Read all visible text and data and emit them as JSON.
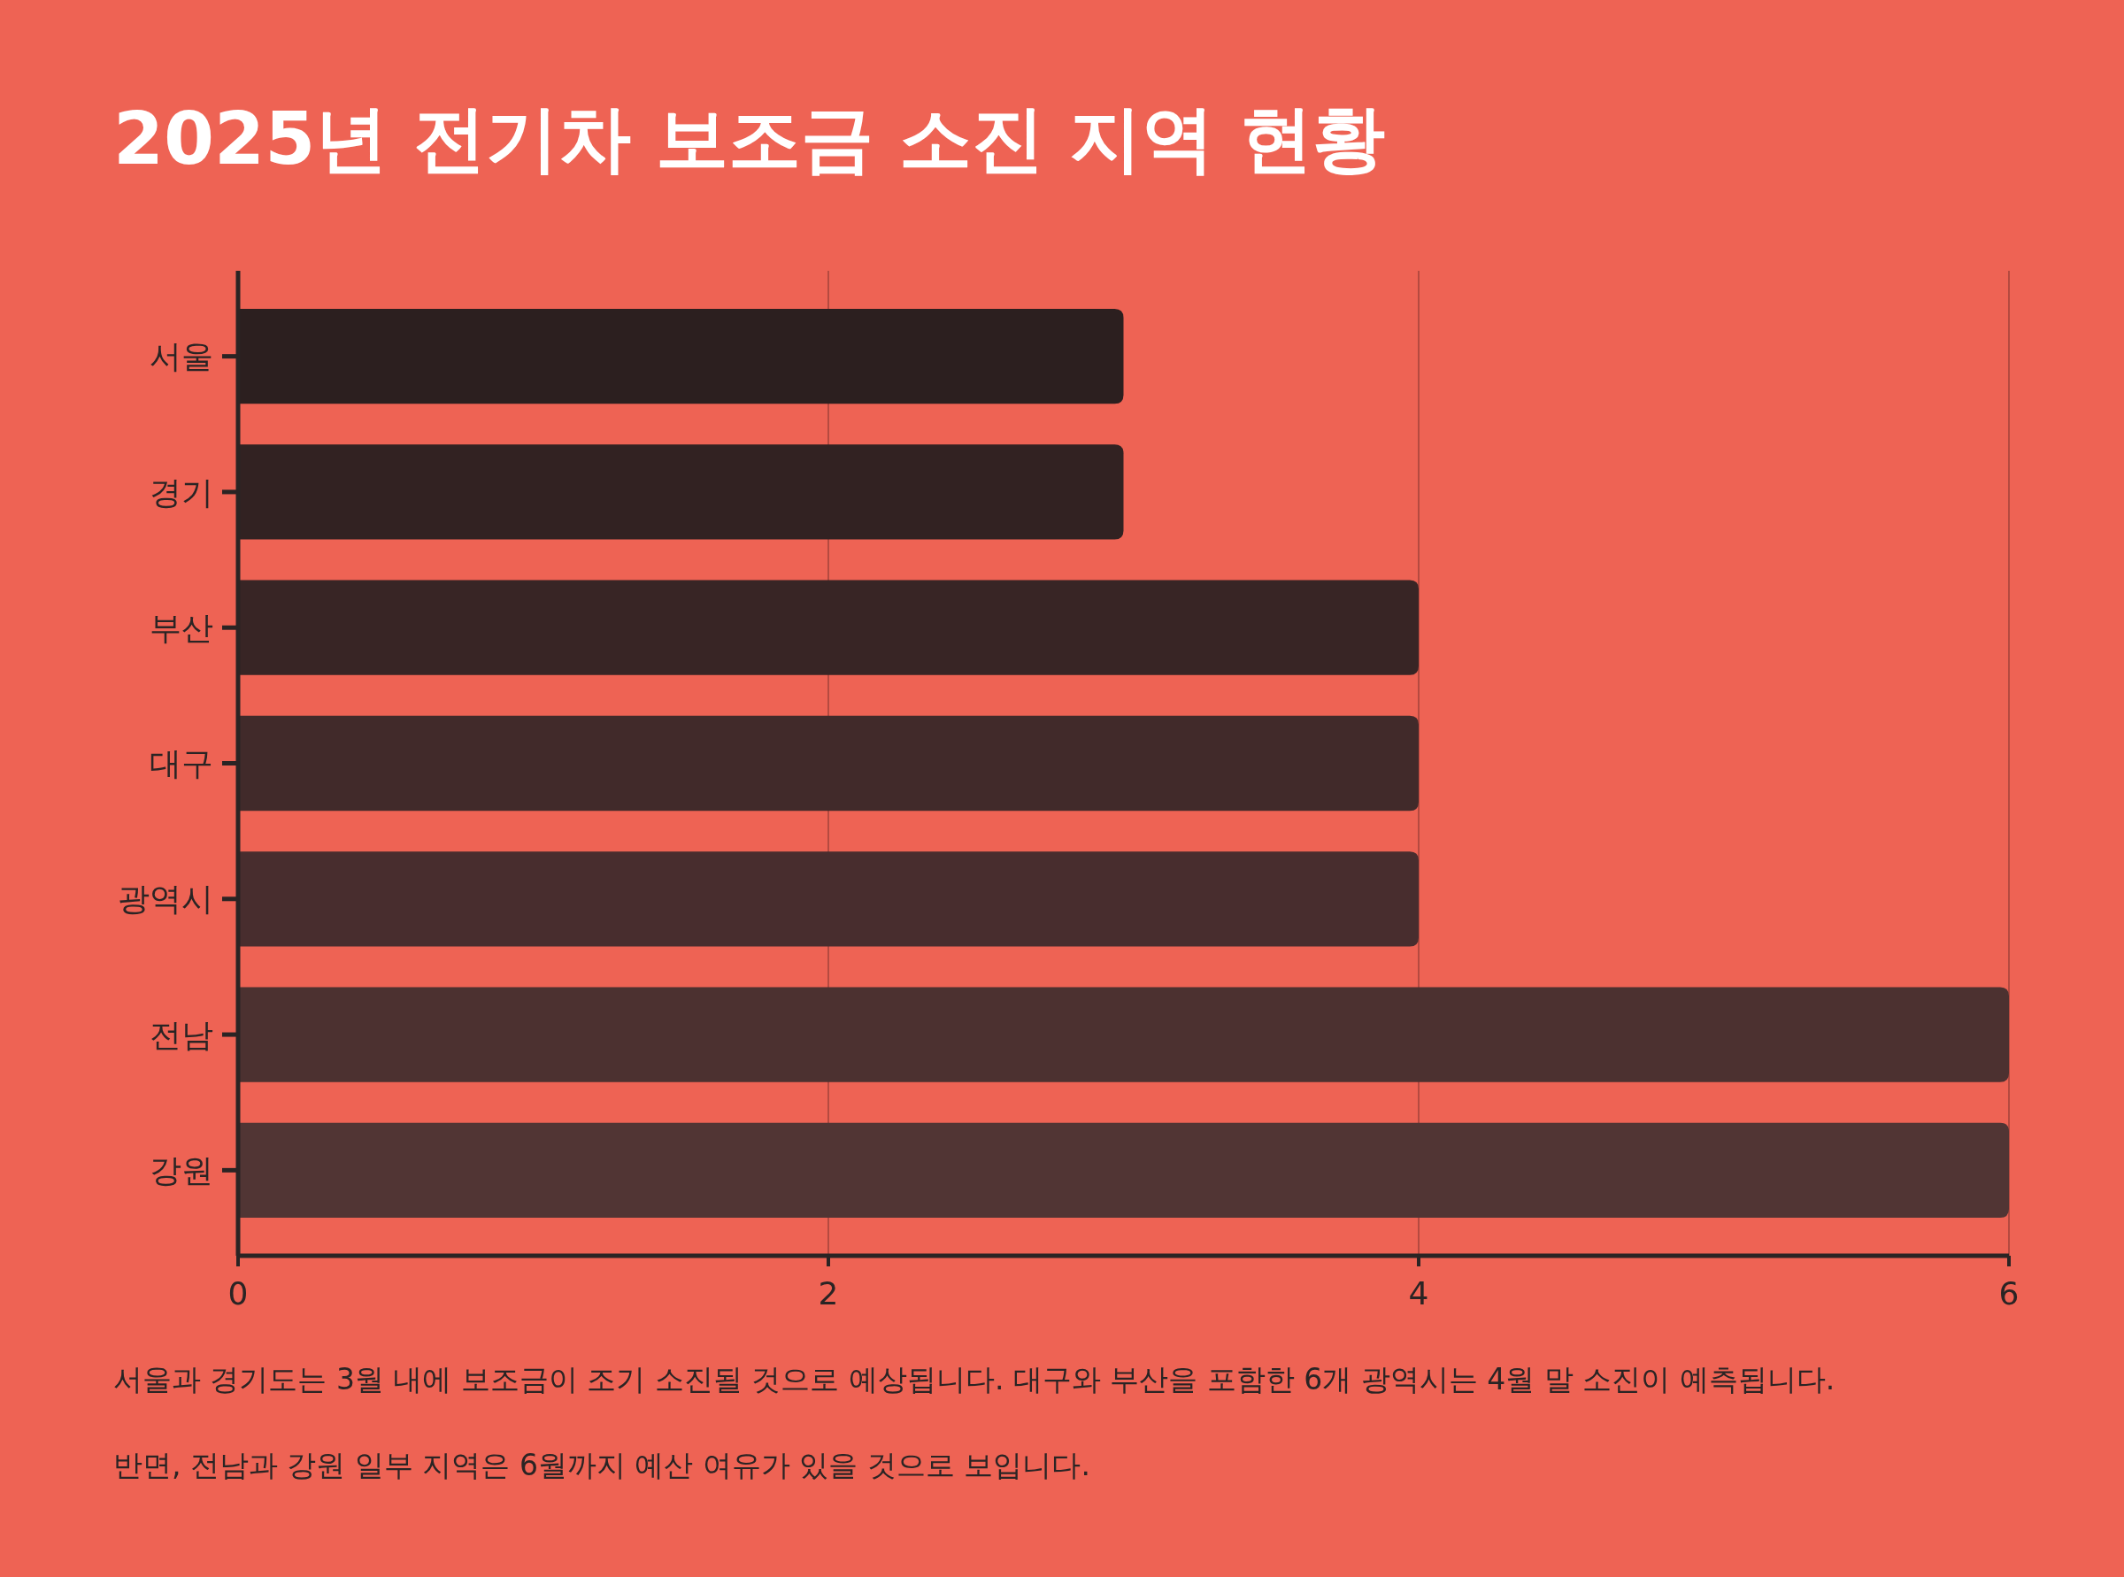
{
  "chart_data": {
    "type": "bar",
    "orientation": "horizontal",
    "title": "2025년 전기차 보조금 소진 지역 현황",
    "categories": [
      "서울",
      "경기",
      "부산",
      "대구",
      "광역시",
      "전남",
      "강원"
    ],
    "values": [
      3,
      3,
      4,
      4,
      4,
      6,
      6
    ],
    "colors": [
      "#2c1f1f",
      "#322222",
      "#382525",
      "#412a2a",
      "#482d2e",
      "#4c3130",
      "#513534"
    ],
    "xlim": [
      0,
      6
    ],
    "xticks": [
      0,
      2,
      4,
      6
    ],
    "grid": "x",
    "annotations": [
      "서울과 경기도는 3월 내에 보조금이 조기 소진될 것으로 예상됩니다. 대구와 부산을 포함한 6개 광역시는 4월 말 소진이 예측됩니다.",
      "반면, 전남과 강원 일부 지역은 6월까지 예산 여유가 있을 것으로 보입니다."
    ]
  }
}
